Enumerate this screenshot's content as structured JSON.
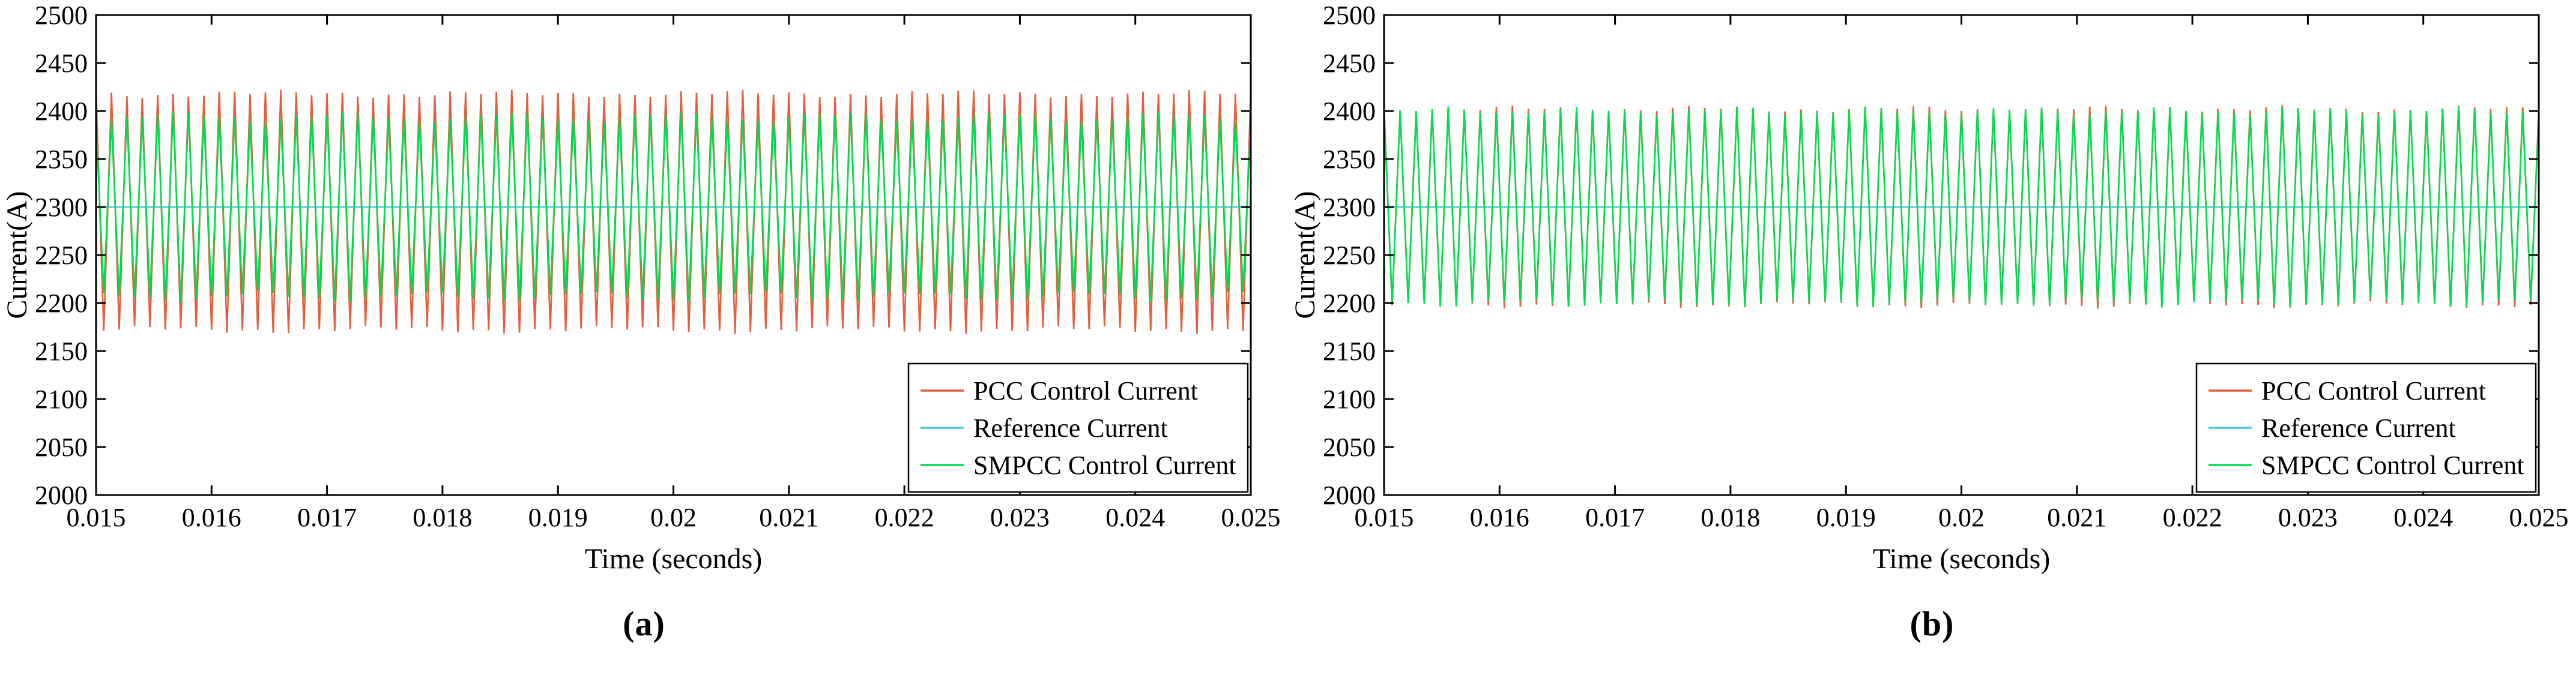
{
  "page": {
    "background": "#ffffff"
  },
  "chart_data": [
    {
      "id": "a",
      "type": "line",
      "caption": "(a)",
      "xlabel": "Time (seconds)",
      "ylabel": "Current(A)",
      "xlim": [
        0.015,
        0.025
      ],
      "ylim": [
        2000,
        2500
      ],
      "xtick_labels": [
        "0.015",
        "0.016",
        "0.017",
        "0.018",
        "0.019",
        "0.02",
        "0.021",
        "0.022",
        "0.023",
        "0.024",
        "0.025"
      ],
      "ytick_labels": [
        "2000",
        "2050",
        "2100",
        "2150",
        "2200",
        "2250",
        "2300",
        "2350",
        "2400",
        "2450",
        "2500"
      ],
      "grid": false,
      "legend": {
        "position": "bottom-right",
        "border_color": "#000000",
        "background": "#ffffff"
      },
      "series": [
        {
          "name": "PCC Control Current",
          "color": "#e0603a",
          "kind": "ripple",
          "center": 2295,
          "amplitude": 125,
          "ripple_min": 2170,
          "ripple_max": 2420,
          "cycles": 75,
          "mod_depth": 0.035,
          "mod_cycles": 5,
          "phase": 0.0
        },
        {
          "name": "Reference Current",
          "color": "#4fc3e0",
          "kind": "constant",
          "value": 2300
        },
        {
          "name": "SMPCC Control Current",
          "color": "#00dd4e",
          "kind": "ripple",
          "center": 2300,
          "amplitude": 98,
          "ripple_min": 2202,
          "ripple_max": 2398,
          "cycles": 75,
          "mod_depth": 0.09,
          "mod_cycles": 7,
          "phase": 1.7
        }
      ]
    },
    {
      "id": "b",
      "type": "line",
      "caption": "(b)",
      "xlabel": "Time (seconds)",
      "ylabel": "Current(A)",
      "xlim": [
        0.015,
        0.025
      ],
      "ylim": [
        2000,
        2500
      ],
      "xtick_labels": [
        "0.015",
        "0.016",
        "0.017",
        "0.018",
        "0.019",
        "0.02",
        "0.021",
        "0.022",
        "0.023",
        "0.024",
        "0.025"
      ],
      "ytick_labels": [
        "2000",
        "2050",
        "2100",
        "2150",
        "2200",
        "2250",
        "2300",
        "2350",
        "2400",
        "2450",
        "2500"
      ],
      "grid": false,
      "legend": {
        "position": "bottom-right",
        "border_color": "#000000",
        "background": "#ffffff"
      },
      "series": [
        {
          "name": "PCC Control Current",
          "color": "#e0603a",
          "kind": "ripple",
          "center": 2300,
          "amplitude": 104,
          "ripple_min": 2196,
          "ripple_max": 2404,
          "cycles": 72,
          "mod_depth": 0.04,
          "mod_cycles": 6,
          "phase": 0.4
        },
        {
          "name": "Reference Current",
          "color": "#4fc3e0",
          "kind": "constant",
          "value": 2300
        },
        {
          "name": "SMPCC Control Current",
          "color": "#00dd4e",
          "kind": "ripple",
          "center": 2300,
          "amplitude": 103,
          "ripple_min": 2197,
          "ripple_max": 2403,
          "cycles": 72,
          "mod_depth": 0.06,
          "mod_cycles": 8,
          "phase": 2.3
        }
      ]
    }
  ]
}
